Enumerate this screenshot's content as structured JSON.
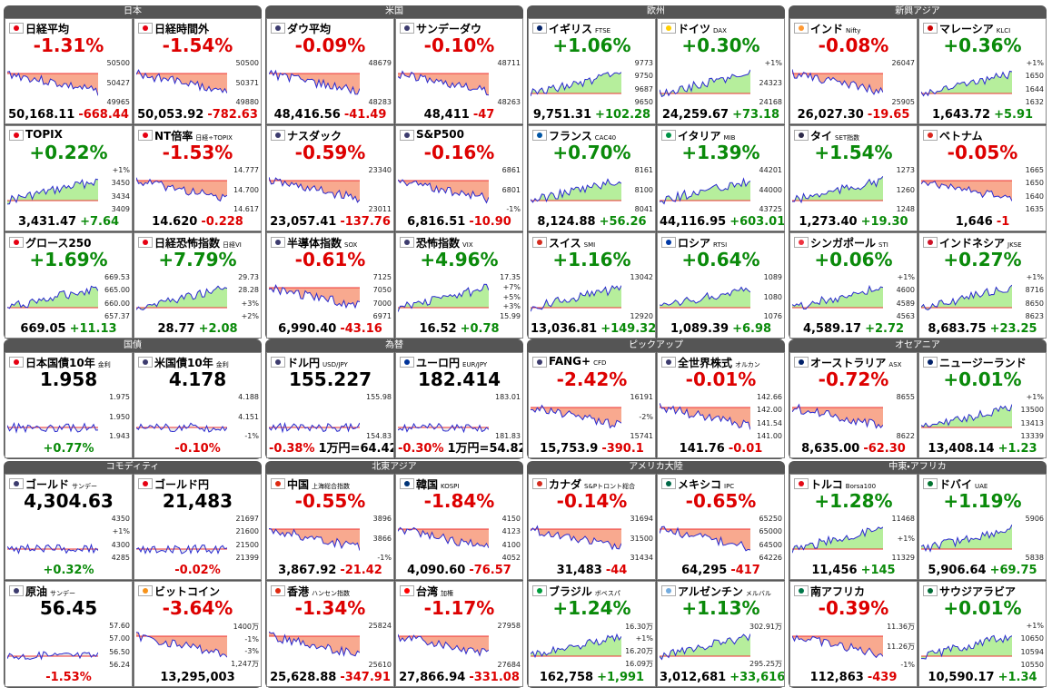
{
  "groups": [
    {
      "title": "日本",
      "tiles": [
        {
          "n": "日経平均",
          "f": "#e60012",
          "p": "-1.31%",
          "b": [
            "50,168.11",
            "-668.44"
          ],
          "a": [
            "50500",
            "50427",
            "49965"
          ]
        },
        {
          "n": "日経時間外",
          "f": "#e60012",
          "p": "-1.54%",
          "b": [
            "50,053.92",
            "-782.63"
          ],
          "a": [
            "50500",
            "50371",
            "49880"
          ]
        },
        {
          "n": "TOPIX",
          "f": "#e60012",
          "p": "+0.22%",
          "b": [
            "3,431.47",
            "+7.64"
          ],
          "a": [
            "+1%",
            "3450",
            "3434",
            "3409"
          ]
        },
        {
          "n": "NT倍率",
          "s": "日経÷TOPIX",
          "f": "#e60012",
          "p": "-1.53%",
          "b": [
            "14.620",
            "-0.228"
          ],
          "a": [
            "14.777",
            "14.700",
            "14.617"
          ]
        },
        {
          "n": "グロース250",
          "f": "#e60012",
          "p": "+1.69%",
          "b": [
            "669.05",
            "+11.13"
          ],
          "a": [
            "669.53",
            "665.00",
            "660.00",
            "657.37"
          ]
        },
        {
          "n": "日経恐怖指数",
          "s": "日経VI",
          "f": "#e60012",
          "p": "+7.79%",
          "b": [
            "28.77",
            "+2.08"
          ],
          "a": [
            "29.73",
            "28.28",
            "+3%",
            "+2%"
          ]
        }
      ]
    },
    {
      "title": "米国",
      "tiles": [
        {
          "n": "ダウ平均",
          "f": "#3c3b6e",
          "p": "-0.09%",
          "b": [
            "48,416.56",
            "-41.49"
          ],
          "a": [
            "48679",
            "48283"
          ]
        },
        {
          "n": "サンデーダウ",
          "f": "#3c3b6e",
          "p": "-0.10%",
          "b": [
            "48,411",
            "-47"
          ],
          "a": [
            "48711",
            "48263"
          ]
        },
        {
          "n": "ナスダック",
          "f": "#3c3b6e",
          "p": "-0.59%",
          "b": [
            "23,057.41",
            "-137.76"
          ],
          "a": [
            "23340",
            "23011"
          ]
        },
        {
          "n": "S&P500",
          "f": "#3c3b6e",
          "p": "-0.16%",
          "b": [
            "6,816.51",
            "-10.90"
          ],
          "a": [
            "6861",
            "6801",
            "-1%"
          ]
        },
        {
          "n": "半導体指数",
          "s": "SOX",
          "f": "#3c3b6e",
          "p": "-0.61%",
          "b": [
            "6,990.40",
            "-43.16"
          ],
          "a": [
            "7125",
            "7050",
            "7000",
            "6971"
          ]
        },
        {
          "n": "恐怖指数",
          "s": "VIX",
          "f": "#3c3b6e",
          "p": "+4.96%",
          "b": [
            "16.52",
            "+0.78"
          ],
          "a": [
            "17.35",
            "+7%",
            "+5%",
            "+3%",
            "15.99"
          ]
        }
      ]
    },
    {
      "title": "欧州",
      "tiles": [
        {
          "n": "イギリス",
          "s": "FTSE",
          "f": "#012169",
          "p": "+1.06%",
          "b": [
            "9,751.31",
            "+102.28"
          ],
          "a": [
            "9773",
            "9750",
            "9687",
            "9650"
          ]
        },
        {
          "n": "ドイツ",
          "s": "DAX",
          "f": "#ffce00",
          "p": "+0.30%",
          "b": [
            "24,259.67",
            "+73.18"
          ],
          "a": [
            "+1%",
            "24323",
            "24168"
          ]
        },
        {
          "n": "フランス",
          "s": "CAC40",
          "f": "#0055a4",
          "p": "+0.70%",
          "b": [
            "8,124.88",
            "+56.26"
          ],
          "a": [
            "8161",
            "8100",
            "8041"
          ]
        },
        {
          "n": "イタリア",
          "s": "MIB",
          "f": "#009246",
          "p": "+1.39%",
          "b": [
            "44,116.95",
            "+603.01"
          ],
          "a": [
            "44201",
            "44000",
            "43725"
          ]
        },
        {
          "n": "スイス",
          "s": "SMI",
          "f": "#d52b1e",
          "p": "+1.16%",
          "b": [
            "13,036.81",
            "+149.32"
          ],
          "a": [
            "13042",
            "12920"
          ]
        },
        {
          "n": "ロシア",
          "s": "RTSI",
          "f": "#0039a6",
          "p": "+0.64%",
          "b": [
            "1,089.39",
            "+6.98"
          ],
          "a": [
            "1089",
            "1080",
            "1076"
          ]
        }
      ]
    },
    {
      "title": "新興アジア",
      "tiles": [
        {
          "n": "インド",
          "s": "Nifty",
          "f": "#ff9933",
          "p": "-0.08%",
          "b": [
            "26,027.30",
            "-19.65"
          ],
          "a": [
            "26047",
            "25905"
          ]
        },
        {
          "n": "マレーシア",
          "s": "KLCI",
          "f": "#cc0001",
          "p": "+0.36%",
          "b": [
            "1,643.72",
            "+5.91"
          ],
          "a": [
            "+1%",
            "1650",
            "1644",
            "1632"
          ]
        },
        {
          "n": "タイ",
          "s": "SET指数",
          "f": "#2d2a4a",
          "p": "+1.54%",
          "b": [
            "1,273.40",
            "+19.30"
          ],
          "a": [
            "1273",
            "1260",
            "1248"
          ]
        },
        {
          "n": "ベトナム",
          "f": "#da251d",
          "p": "-0.05%",
          "b": [
            "1,646",
            "-1"
          ],
          "a": [
            "1665",
            "1650",
            "1640",
            "1635"
          ]
        },
        {
          "n": "シンガポール",
          "s": "STI",
          "f": "#ef3340",
          "p": "+0.06%",
          "b": [
            "4,589.17",
            "+2.72"
          ],
          "a": [
            "+1%",
            "4600",
            "4589",
            "4563"
          ]
        },
        {
          "n": "インドネシア",
          "s": "JKSE",
          "f": "#ce1126",
          "p": "+0.27%",
          "b": [
            "8,683.75",
            "+23.25"
          ],
          "a": [
            "+1%",
            "8716",
            "8650",
            "8623"
          ]
        }
      ]
    },
    {
      "title": "国債",
      "tiles": [
        {
          "n": "日本国債10年",
          "s": "金利",
          "f": "#e60012",
          "p": "1.958",
          "b": [
            "+0.77%"
          ],
          "a": [
            "1.975",
            "1.950",
            "1.943"
          ]
        },
        {
          "n": "米国債10年",
          "s": "金利",
          "f": "#3c3b6e",
          "p": "4.178",
          "b": [
            "-0.10%"
          ],
          "a": [
            "4.188",
            "4.151",
            "-1%"
          ]
        }
      ]
    },
    {
      "title": "為替",
      "tiles": [
        {
          "n": "ドル円",
          "s": "USD/JPY",
          "f": "#3c3b6e",
          "p": "155.227",
          "b": [
            "-0.38%",
            "1万円=64.42"
          ],
          "a": [
            "155.98",
            "154.83"
          ]
        },
        {
          "n": "ユーロ円",
          "s": "EUR/JPY",
          "f": "#003399",
          "p": "182.414",
          "b": [
            "-0.30%",
            "1万円=54.82"
          ],
          "a": [
            "183.01",
            "181.83"
          ]
        }
      ]
    },
    {
      "title": "ピックアップ",
      "tiles": [
        {
          "n": "FANG+",
          "s": "CFD",
          "f": "#3c3b6e",
          "p": "-2.42%",
          "b": [
            "15,753.9",
            "-390.1"
          ],
          "a": [
            "16191",
            "-2%",
            "15741"
          ]
        },
        {
          "n": "全世界株式",
          "s": "オルカン",
          "f": "#3c3b6e",
          "p": "-0.01%",
          "b": [
            "141.76",
            "-0.01"
          ],
          "a": [
            "142.66",
            "142.00",
            "141.54",
            "141.00"
          ]
        }
      ]
    },
    {
      "title": "オセアニア",
      "tiles": [
        {
          "n": "オーストラリア",
          "s": "ASX",
          "f": "#012169",
          "p": "-0.72%",
          "b": [
            "8,635.00",
            "-62.30"
          ],
          "a": [
            "8655",
            "8622"
          ]
        },
        {
          "n": "ニュージーランド",
          "f": "#012169",
          "p": "+0.01%",
          "b": [
            "13,408.14",
            "+1.23"
          ],
          "a": [
            "+1%",
            "13500",
            "13413",
            "13339"
          ]
        }
      ]
    },
    {
      "title": "コモディティ",
      "tiles": [
        {
          "n": "ゴールド",
          "s": "サンデー",
          "f": "#3c3b6e",
          "p": "4,304.63",
          "b": [
            "+0.32%"
          ],
          "a": [
            "4350",
            "+1%",
            "4300",
            "4285"
          ]
        },
        {
          "n": "ゴールド円",
          "f": "#e60012",
          "p": "21,483",
          "b": [
            "-0.02%"
          ],
          "a": [
            "21697",
            "21600",
            "21500",
            "21399"
          ]
        },
        {
          "n": "原油",
          "s": "サンデー",
          "f": "#3c3b6e",
          "p": "56.45",
          "b": [
            "-1.53%"
          ],
          "a": [
            "57.60",
            "57.00",
            "56.50",
            "56.24"
          ]
        },
        {
          "n": "ビットコイン",
          "f": "#f7931a",
          "p": "-3.64%",
          "b": [
            "13,295,003"
          ],
          "a": [
            "1400万",
            "-1%",
            "-3%",
            "1,247万"
          ]
        }
      ]
    },
    {
      "title": "北東アジア",
      "tiles": [
        {
          "n": "中国",
          "s": "上海総合指数",
          "f": "#de2910",
          "p": "-0.55%",
          "b": [
            "3,867.92",
            "-21.42"
          ],
          "a": [
            "3896",
            "3866",
            "-1%"
          ]
        },
        {
          "n": "韓国",
          "s": "KOSPI",
          "f": "#003478",
          "p": "-1.84%",
          "b": [
            "4,090.60",
            "-76.57"
          ],
          "a": [
            "4150",
            "4123",
            "4100",
            "4052"
          ]
        },
        {
          "n": "香港",
          "s": "ハンセン指数",
          "f": "#de2910",
          "p": "-1.34%",
          "b": [
            "25,628.88",
            "-347.91"
          ],
          "a": [
            "25824",
            "25610"
          ]
        },
        {
          "n": "台湾",
          "s": "加権",
          "f": "#fe0000",
          "p": "-1.17%",
          "b": [
            "27,866.94",
            "-331.08"
          ],
          "a": [
            "27958",
            "27684"
          ]
        }
      ]
    },
    {
      "title": "アメリカ大陸",
      "tiles": [
        {
          "n": "カナダ",
          "s": "S&Pトロント総合",
          "f": "#d52b1e",
          "p": "-0.14%",
          "b": [
            "31,483",
            "-44"
          ],
          "a": [
            "31694",
            "31500",
            "31434"
          ]
        },
        {
          "n": "メキシコ",
          "s": "IPC",
          "f": "#006847",
          "p": "-0.65%",
          "b": [
            "64,295",
            "-417"
          ],
          "a": [
            "65250",
            "65000",
            "64500",
            "64226"
          ]
        },
        {
          "n": "ブラジル",
          "s": "ボベスパ",
          "f": "#009c3b",
          "p": "+1.24%",
          "b": [
            "162,758",
            "+1,991"
          ],
          "a": [
            "16.30万",
            "+1%",
            "16.20万",
            "16.09万"
          ]
        },
        {
          "n": "アルゼンチン",
          "s": "メルバル",
          "f": "#74acdf",
          "p": "+1.13%",
          "b": [
            "3,012,681",
            "+33,616"
          ],
          "a": [
            "302.91万",
            "295.25万"
          ]
        }
      ]
    },
    {
      "title": "中東・アフリカ",
      "tiles": [
        {
          "n": "トルコ",
          "s": "Borsa100",
          "f": "#e30a17",
          "p": "+1.28%",
          "b": [
            "11,456",
            "+145"
          ],
          "a": [
            "11468",
            "+1%",
            "11329"
          ]
        },
        {
          "n": "ドバイ",
          "s": "UAE",
          "f": "#00732f",
          "p": "+1.19%",
          "b": [
            "5,906.64",
            "+69.75"
          ],
          "a": [
            "5906",
            "5838"
          ]
        },
        {
          "n": "南アフリカ",
          "f": "#007749",
          "p": "-0.39%",
          "b": [
            "112,863",
            "-439"
          ],
          "a": [
            "11.36万",
            "11.26万",
            "-1%"
          ]
        },
        {
          "n": "サウジアラビア",
          "f": "#006c35",
          "p": "+0.01%",
          "b": [
            "10,590.17",
            "+1.34"
          ],
          "a": [
            "+1%",
            "10650",
            "10594",
            "10550"
          ]
        }
      ]
    }
  ]
}
